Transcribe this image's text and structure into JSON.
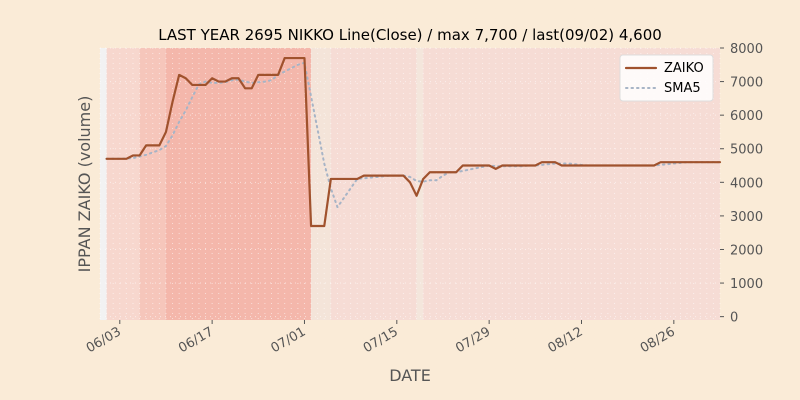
{
  "chart_data": {
    "type": "line",
    "title": "LAST YEAR 2695 NIKKO Line(Close) / max 7,700 / last(09/02) 4,600",
    "xlabel": "DATE",
    "ylabel": "IPPAN ZAIKO (volume)",
    "x_start": "2023-05-31",
    "x_end": "2023-09-02",
    "ylim": [
      -100,
      8000
    ],
    "yticks": [
      0,
      1000,
      2000,
      3000,
      4000,
      5000,
      6000,
      7000,
      8000
    ],
    "xticks": [
      {
        "date": "2023-06-03",
        "label": "06/03"
      },
      {
        "date": "2023-06-17",
        "label": "06/17"
      },
      {
        "date": "2023-07-01",
        "label": "07/01"
      },
      {
        "date": "2023-07-15",
        "label": "07/15"
      },
      {
        "date": "2023-07-29",
        "label": "07/29"
      },
      {
        "date": "2023-08-12",
        "label": "08/12"
      },
      {
        "date": "2023-08-26",
        "label": "08/26"
      }
    ],
    "legend_position": "top-right",
    "grid": true,
    "bands": [
      {
        "start": "2023-05-31",
        "end": "2023-06-01",
        "color": "#f2f2f2"
      },
      {
        "start": "2023-06-01",
        "end": "2023-06-06",
        "color": "#f7d7ce"
      },
      {
        "start": "2023-06-06",
        "end": "2023-06-10",
        "color": "#f6c6bb"
      },
      {
        "start": "2023-06-10",
        "end": "2023-07-02",
        "color": "#f4b7ab"
      },
      {
        "start": "2023-07-02",
        "end": "2023-07-05",
        "color": "#f4e4d9"
      },
      {
        "start": "2023-07-05",
        "end": "2023-07-18",
        "color": "#f6dcd5"
      },
      {
        "start": "2023-07-18",
        "end": "2023-07-19",
        "color": "#f4e6dc"
      },
      {
        "start": "2023-07-19",
        "end": "2023-09-02",
        "color": "#f6dcd5"
      }
    ],
    "series": [
      {
        "name": "ZAIKO",
        "color": "#a0522d",
        "style": "solid",
        "points": [
          [
            "2023-06-01",
            4700
          ],
          [
            "2023-06-02",
            4700
          ],
          [
            "2023-06-03",
            4700
          ],
          [
            "2023-06-04",
            4700
          ],
          [
            "2023-06-05",
            4800
          ],
          [
            "2023-06-06",
            4800
          ],
          [
            "2023-06-07",
            5100
          ],
          [
            "2023-06-08",
            5100
          ],
          [
            "2023-06-09",
            5100
          ],
          [
            "2023-06-10",
            5500
          ],
          [
            "2023-06-11",
            6400
          ],
          [
            "2023-06-12",
            7200
          ],
          [
            "2023-06-13",
            7100
          ],
          [
            "2023-06-14",
            6900
          ],
          [
            "2023-06-15",
            6900
          ],
          [
            "2023-06-16",
            6900
          ],
          [
            "2023-06-17",
            7100
          ],
          [
            "2023-06-18",
            7000
          ],
          [
            "2023-06-19",
            7000
          ],
          [
            "2023-06-20",
            7100
          ],
          [
            "2023-06-21",
            7100
          ],
          [
            "2023-06-22",
            6800
          ],
          [
            "2023-06-23",
            6800
          ],
          [
            "2023-06-24",
            7200
          ],
          [
            "2023-06-25",
            7200
          ],
          [
            "2023-06-26",
            7200
          ],
          [
            "2023-06-27",
            7200
          ],
          [
            "2023-06-28",
            7700
          ],
          [
            "2023-06-29",
            7700
          ],
          [
            "2023-06-30",
            7700
          ],
          [
            "2023-07-01",
            7700
          ],
          [
            "2023-07-02",
            2700
          ],
          [
            "2023-07-03",
            2700
          ],
          [
            "2023-07-04",
            2700
          ],
          [
            "2023-07-05",
            4100
          ],
          [
            "2023-07-06",
            4100
          ],
          [
            "2023-07-07",
            4100
          ],
          [
            "2023-07-08",
            4100
          ],
          [
            "2023-07-09",
            4100
          ],
          [
            "2023-07-10",
            4200
          ],
          [
            "2023-07-11",
            4200
          ],
          [
            "2023-07-12",
            4200
          ],
          [
            "2023-07-13",
            4200
          ],
          [
            "2023-07-14",
            4200
          ],
          [
            "2023-07-15",
            4200
          ],
          [
            "2023-07-16",
            4200
          ],
          [
            "2023-07-17",
            4000
          ],
          [
            "2023-07-18",
            3600
          ],
          [
            "2023-07-19",
            4100
          ],
          [
            "2023-07-20",
            4300
          ],
          [
            "2023-07-21",
            4300
          ],
          [
            "2023-07-22",
            4300
          ],
          [
            "2023-07-23",
            4300
          ],
          [
            "2023-07-24",
            4300
          ],
          [
            "2023-07-25",
            4500
          ],
          [
            "2023-07-26",
            4500
          ],
          [
            "2023-07-27",
            4500
          ],
          [
            "2023-07-28",
            4500
          ],
          [
            "2023-07-29",
            4500
          ],
          [
            "2023-07-30",
            4400
          ],
          [
            "2023-07-31",
            4500
          ],
          [
            "2023-08-01",
            4500
          ],
          [
            "2023-08-02",
            4500
          ],
          [
            "2023-08-03",
            4500
          ],
          [
            "2023-08-04",
            4500
          ],
          [
            "2023-08-05",
            4500
          ],
          [
            "2023-08-06",
            4600
          ],
          [
            "2023-08-07",
            4600
          ],
          [
            "2023-08-08",
            4600
          ],
          [
            "2023-08-09",
            4500
          ],
          [
            "2023-08-10",
            4500
          ],
          [
            "2023-08-11",
            4500
          ],
          [
            "2023-08-12",
            4500
          ],
          [
            "2023-08-13",
            4500
          ],
          [
            "2023-08-14",
            4500
          ],
          [
            "2023-08-15",
            4500
          ],
          [
            "2023-08-16",
            4500
          ],
          [
            "2023-08-17",
            4500
          ],
          [
            "2023-08-18",
            4500
          ],
          [
            "2023-08-19",
            4500
          ],
          [
            "2023-08-20",
            4500
          ],
          [
            "2023-08-21",
            4500
          ],
          [
            "2023-08-22",
            4500
          ],
          [
            "2023-08-23",
            4500
          ],
          [
            "2023-08-24",
            4600
          ],
          [
            "2023-08-25",
            4600
          ],
          [
            "2023-08-26",
            4600
          ],
          [
            "2023-08-27",
            4600
          ],
          [
            "2023-08-28",
            4600
          ],
          [
            "2023-08-29",
            4600
          ],
          [
            "2023-08-30",
            4600
          ],
          [
            "2023-08-31",
            4600
          ],
          [
            "2023-09-01",
            4600
          ],
          [
            "2023-09-02",
            4600
          ]
        ]
      },
      {
        "name": "SMA5",
        "color": "#a7b4c6",
        "style": "dotted",
        "points": [
          [
            "2023-06-01",
            4700
          ],
          [
            "2023-06-03",
            4700
          ],
          [
            "2023-06-05",
            4720
          ],
          [
            "2023-06-07",
            4820
          ],
          [
            "2023-06-09",
            4960
          ],
          [
            "2023-06-10",
            5080
          ],
          [
            "2023-06-11",
            5400
          ],
          [
            "2023-06-12",
            5800
          ],
          [
            "2023-06-13",
            6140
          ],
          [
            "2023-06-14",
            6540
          ],
          [
            "2023-06-15",
            6920
          ],
          [
            "2023-06-16",
            7000
          ],
          [
            "2023-06-17",
            6960
          ],
          [
            "2023-06-18",
            6960
          ],
          [
            "2023-06-19",
            6980
          ],
          [
            "2023-06-20",
            7040
          ],
          [
            "2023-06-21",
            7060
          ],
          [
            "2023-06-22",
            7000
          ],
          [
            "2023-06-23",
            6960
          ],
          [
            "2023-06-24",
            6980
          ],
          [
            "2023-06-25",
            7000
          ],
          [
            "2023-06-26",
            7040
          ],
          [
            "2023-06-27",
            7200
          ],
          [
            "2023-06-28",
            7300
          ],
          [
            "2023-06-29",
            7400
          ],
          [
            "2023-06-30",
            7500
          ],
          [
            "2023-07-01",
            7560
          ],
          [
            "2023-07-02",
            6560
          ],
          [
            "2023-07-03",
            5560
          ],
          [
            "2023-07-04",
            4560
          ],
          [
            "2023-07-05",
            3820
          ],
          [
            "2023-07-06",
            3260
          ],
          [
            "2023-07-07",
            3540
          ],
          [
            "2023-07-08",
            3820
          ],
          [
            "2023-07-09",
            4100
          ],
          [
            "2023-07-10",
            4120
          ],
          [
            "2023-07-11",
            4140
          ],
          [
            "2023-07-12",
            4160
          ],
          [
            "2023-07-13",
            4180
          ],
          [
            "2023-07-14",
            4200
          ],
          [
            "2023-07-15",
            4200
          ],
          [
            "2023-07-16",
            4200
          ],
          [
            "2023-07-17",
            4160
          ],
          [
            "2023-07-18",
            4040
          ],
          [
            "2023-07-19",
            4020
          ],
          [
            "2023-07-20",
            4060
          ],
          [
            "2023-07-21",
            4060
          ],
          [
            "2023-07-22",
            4200
          ],
          [
            "2023-07-23",
            4300
          ],
          [
            "2023-07-24",
            4300
          ],
          [
            "2023-07-25",
            4340
          ],
          [
            "2023-07-26",
            4380
          ],
          [
            "2023-07-27",
            4420
          ],
          [
            "2023-07-28",
            4460
          ],
          [
            "2023-07-29",
            4500
          ],
          [
            "2023-07-30",
            4480
          ],
          [
            "2023-07-31",
            4480
          ],
          [
            "2023-08-01",
            4480
          ],
          [
            "2023-08-02",
            4480
          ],
          [
            "2023-08-03",
            4480
          ],
          [
            "2023-08-04",
            4500
          ],
          [
            "2023-08-05",
            4500
          ],
          [
            "2023-08-06",
            4520
          ],
          [
            "2023-08-07",
            4540
          ],
          [
            "2023-08-08",
            4560
          ],
          [
            "2023-08-09",
            4560
          ],
          [
            "2023-08-10",
            4560
          ],
          [
            "2023-08-11",
            4540
          ],
          [
            "2023-08-12",
            4520
          ],
          [
            "2023-08-13",
            4500
          ],
          [
            "2023-08-15",
            4500
          ],
          [
            "2023-08-20",
            4500
          ],
          [
            "2023-08-23",
            4500
          ],
          [
            "2023-08-24",
            4520
          ],
          [
            "2023-08-25",
            4540
          ],
          [
            "2023-08-26",
            4560
          ],
          [
            "2023-08-27",
            4580
          ],
          [
            "2023-08-28",
            4600
          ],
          [
            "2023-08-30",
            4600
          ],
          [
            "2023-09-02",
            4600
          ]
        ]
      }
    ]
  }
}
